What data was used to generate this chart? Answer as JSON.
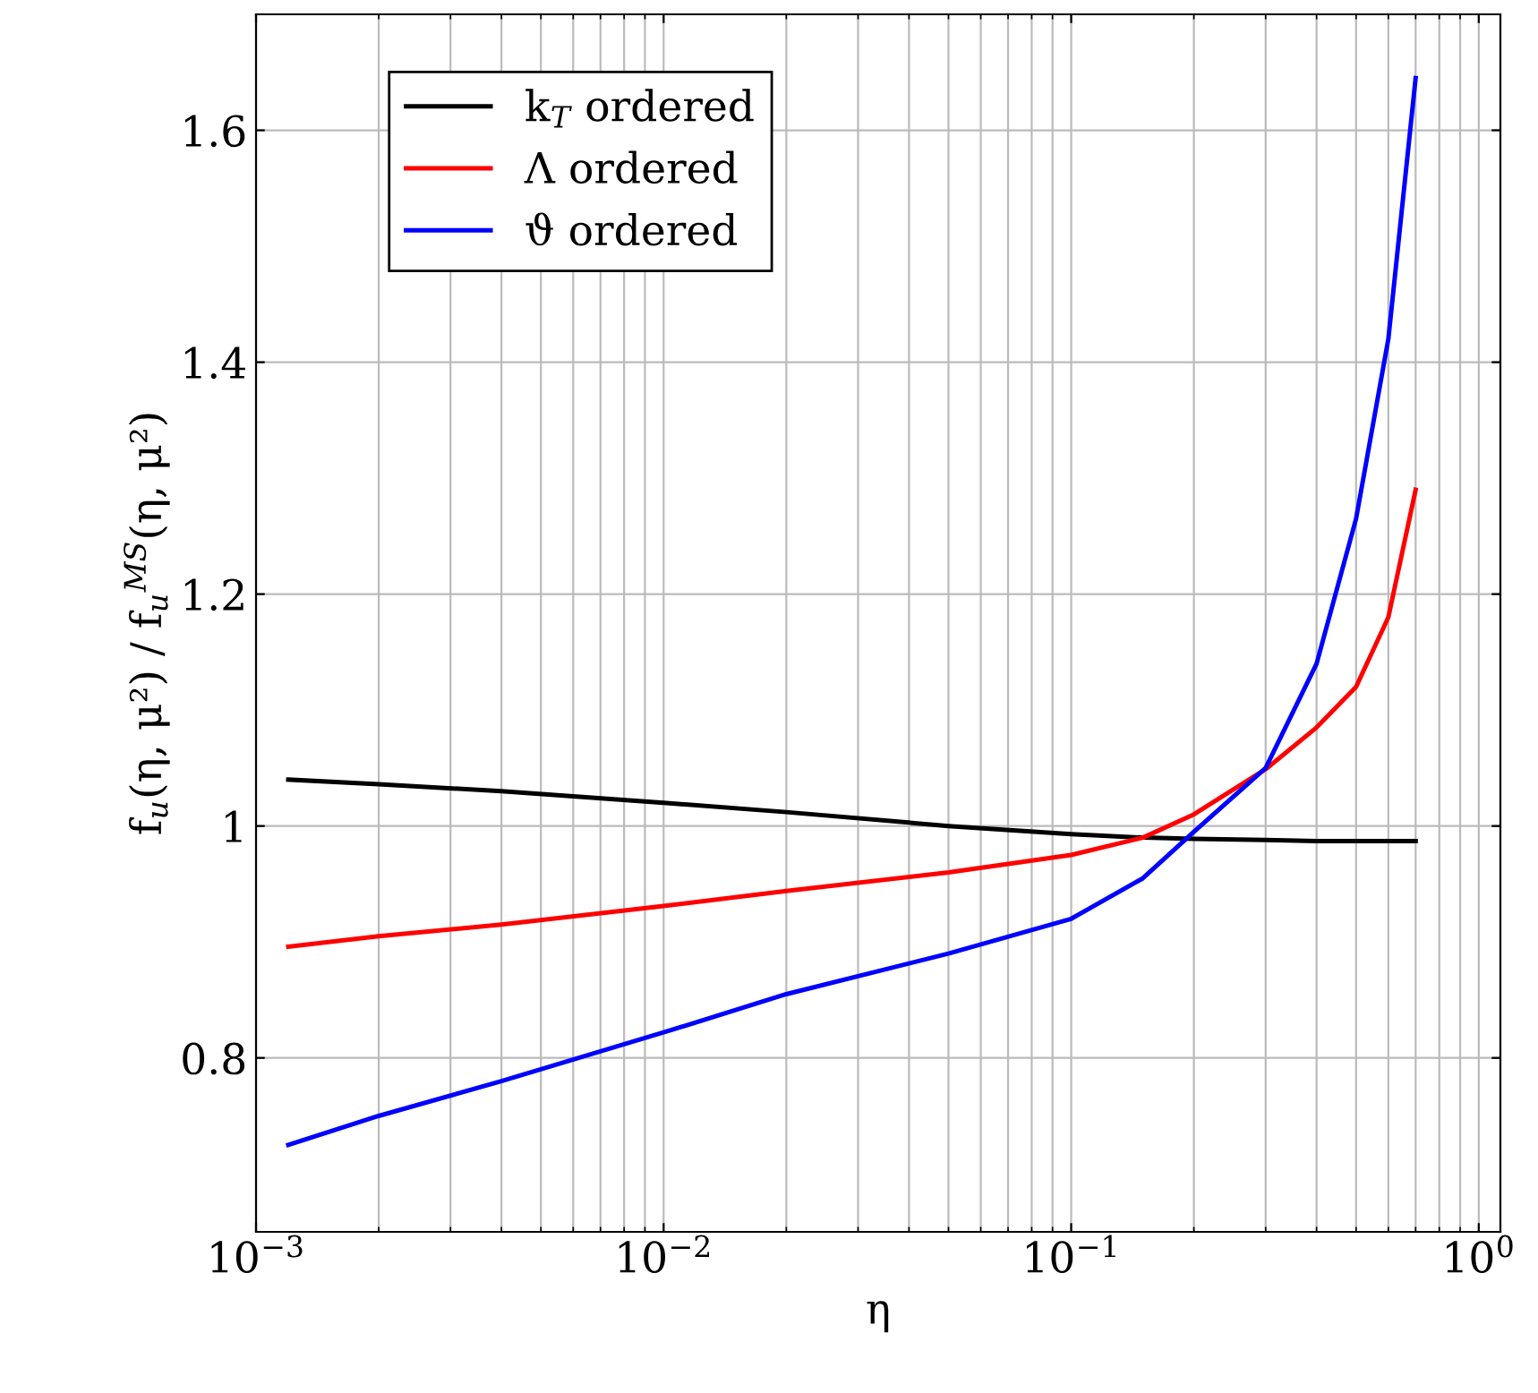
{
  "chart_data": {
    "type": "line",
    "xlabel": "η",
    "ylabel": "f$_{u}$(η, μ²) / f$_{u}$$^{MS}$(η, μ²)",
    "log": "x",
    "xlim": [
      0.001,
      1.13
    ],
    "ylim": [
      0.65,
      1.7
    ],
    "xticks": [
      {
        "value": 0.001,
        "label": "10$^{−3}$"
      },
      {
        "value": 0.01,
        "label": "10$^{−2}$"
      },
      {
        "value": 0.1,
        "label": "10$^{−1}$"
      },
      {
        "value": 1,
        "label": "10$^{0}$"
      }
    ],
    "yticks": [
      0.8,
      1,
      1.2,
      1.4,
      1.6
    ],
    "grid": true,
    "legend": "top left",
    "line_style": "solid",
    "marker": "none",
    "x": [
      0.0012,
      0.002,
      0.004,
      0.01,
      0.02,
      0.05,
      0.1,
      0.15,
      0.2,
      0.3,
      0.4,
      0.5,
      0.6,
      0.7
    ],
    "series": [
      {
        "name": "k$_{T}$ ordered",
        "color": "#000000",
        "values": [
          1.04,
          1.036,
          1.03,
          1.02,
          1.012,
          1.0,
          0.993,
          0.99,
          0.989,
          0.988,
          0.987,
          0.987,
          0.987,
          0.987
        ]
      },
      {
        "name": "Λ ordered",
        "color": "#ff0000",
        "values": [
          0.896,
          0.905,
          0.915,
          0.931,
          0.944,
          0.96,
          0.975,
          0.99,
          1.01,
          1.049,
          1.085,
          1.12,
          1.18,
          1.29
        ]
      },
      {
        "name": "ϑ ordered",
        "color": "#0000ff",
        "values": [
          0.725,
          0.75,
          0.78,
          0.822,
          0.855,
          0.89,
          0.92,
          0.955,
          0.995,
          1.05,
          1.14,
          1.265,
          1.42,
          1.645
        ]
      }
    ]
  }
}
